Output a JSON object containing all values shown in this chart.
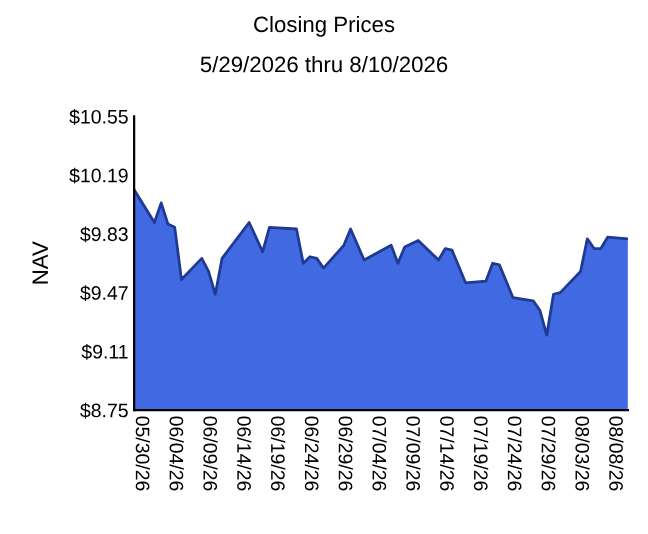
{
  "chart_data": {
    "type": "area",
    "title": "Closing Prices",
    "subtitle": "5/29/2026 thru 8/10/2026",
    "ylabel": "NAV",
    "x": [
      "2026-05-29",
      "2026-06-01",
      "2026-06-02",
      "2026-06-03",
      "2026-06-04",
      "2026-06-05",
      "2026-06-08",
      "2026-06-09",
      "2026-06-10",
      "2026-06-11",
      "2026-06-15",
      "2026-06-17",
      "2026-06-18",
      "2026-06-22",
      "2026-06-23",
      "2026-06-24",
      "2026-06-25",
      "2026-06-26",
      "2026-06-29",
      "2026-06-30",
      "2026-07-02",
      "2026-07-06",
      "2026-07-07",
      "2026-07-08",
      "2026-07-10",
      "2026-07-13",
      "2026-07-14",
      "2026-07-15",
      "2026-07-17",
      "2026-07-20",
      "2026-07-21",
      "2026-07-22",
      "2026-07-24",
      "2026-07-27",
      "2026-07-28",
      "2026-07-29",
      "2026-07-30",
      "2026-07-31",
      "2026-08-03",
      "2026-08-04",
      "2026-08-05",
      "2026-08-06",
      "2026-08-07",
      "2026-08-10"
    ],
    "series": [
      {
        "color": "#4169e1",
        "values": [
          10.1,
          9.9,
          10.02,
          9.89,
          9.87,
          9.55,
          9.68,
          9.6,
          9.46,
          9.68,
          9.9,
          9.72,
          9.87,
          9.86,
          9.65,
          9.69,
          9.68,
          9.62,
          9.76,
          9.86,
          9.67,
          9.76,
          9.65,
          9.75,
          9.79,
          9.67,
          9.74,
          9.73,
          9.53,
          9.54,
          9.65,
          9.64,
          9.44,
          9.42,
          9.36,
          9.21,
          9.46,
          9.47,
          9.6,
          9.8,
          9.74,
          9.74,
          9.81,
          9.8
        ]
      }
    ],
    "xlim": [
      "2026-05-29",
      "2026-08-10"
    ],
    "xticks": [
      {
        "value": "2026-05-30",
        "label": "05/30/26"
      },
      {
        "value": "2026-06-04",
        "label": "06/04/26"
      },
      {
        "value": "2026-06-09",
        "label": "06/09/26"
      },
      {
        "value": "2026-06-14",
        "label": "06/14/26"
      },
      {
        "value": "2026-06-19",
        "label": "06/19/26"
      },
      {
        "value": "2026-06-24",
        "label": "06/24/26"
      },
      {
        "value": "2026-06-29",
        "label": "06/29/26"
      },
      {
        "value": "2026-07-04",
        "label": "07/04/26"
      },
      {
        "value": "2026-07-09",
        "label": "07/09/26"
      },
      {
        "value": "2026-07-14",
        "label": "07/14/26"
      },
      {
        "value": "2026-07-19",
        "label": "07/19/26"
      },
      {
        "value": "2026-07-24",
        "label": "07/24/26"
      },
      {
        "value": "2026-07-29",
        "label": "07/29/26"
      },
      {
        "value": "2026-08-03",
        "label": "08/03/26"
      },
      {
        "value": "2026-08-08",
        "label": "08/08/26"
      }
    ],
    "ylim": [
      8.75,
      10.55
    ],
    "yticks": [
      {
        "value": 8.75,
        "label": "$8.75"
      },
      {
        "value": 9.11,
        "label": "$9.11"
      },
      {
        "value": 9.47,
        "label": "$9.47"
      },
      {
        "value": 9.83,
        "label": "$9.83"
      },
      {
        "value": 10.19,
        "label": "$10.19"
      },
      {
        "value": 10.55,
        "label": "$10.55"
      }
    ],
    "grid": false,
    "legend": false
  }
}
